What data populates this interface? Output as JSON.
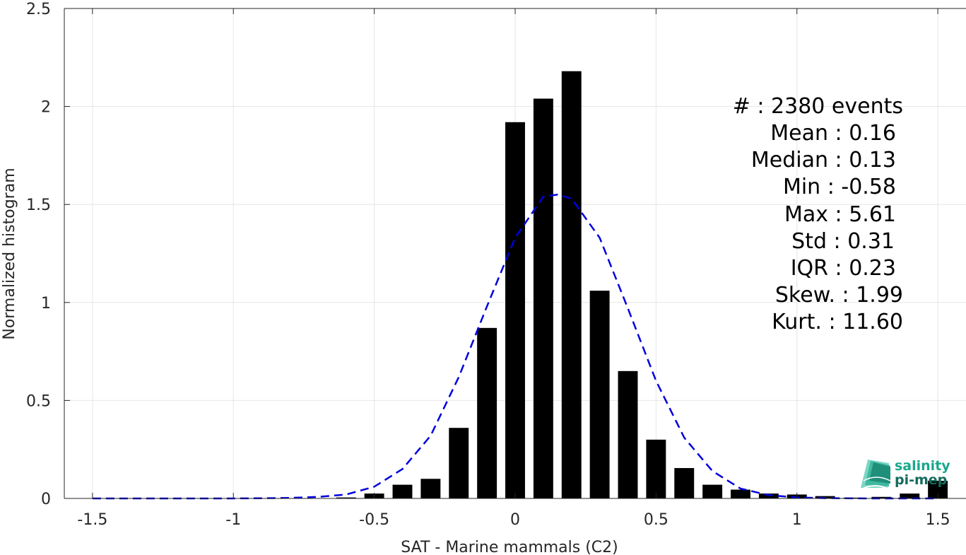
{
  "chart_data": {
    "type": "bar",
    "xlabel": "SAT - Marine mammals (C2)",
    "ylabel": "Normalized histogram",
    "xlim": [
      -1.6,
      1.6
    ],
    "ylim": [
      0,
      2.5
    ],
    "grid": true,
    "xticks": [
      -1.5,
      -1,
      -0.5,
      0,
      0.5,
      1,
      1.5
    ],
    "xtick_labels": [
      "-1.5",
      "-1",
      "-0.5",
      "0",
      "0.5",
      "1",
      "1.5"
    ],
    "yticks": [
      0,
      0.5,
      1,
      1.5,
      2,
      2.5
    ],
    "ytick_labels": [
      "0",
      "0.5",
      "1",
      "1.5",
      "2",
      "2.5"
    ],
    "bar_width": 0.07,
    "bars": {
      "x": [
        -0.6,
        -0.5,
        -0.4,
        -0.3,
        -0.2,
        -0.1,
        0.0,
        0.1,
        0.2,
        0.3,
        0.4,
        0.5,
        0.6,
        0.7,
        0.8,
        0.9,
        1.0,
        1.1,
        1.2,
        1.3,
        1.4,
        1.5
      ],
      "values": [
        0.005,
        0.025,
        0.07,
        0.1,
        0.36,
        0.87,
        1.92,
        2.04,
        2.18,
        1.06,
        0.65,
        0.3,
        0.155,
        0.07,
        0.045,
        0.025,
        0.02,
        0.012,
        0.004,
        0.008,
        0.025,
        0.09
      ],
      "color": "#000000"
    },
    "fit_curve": {
      "style": "dashed",
      "color": "#0000dd",
      "x": [
        -1.5,
        -1.4,
        -1.3,
        -1.2,
        -1.1,
        -1.0,
        -0.9,
        -0.8,
        -0.7,
        -0.6,
        -0.5,
        -0.4,
        -0.3,
        -0.2,
        -0.1,
        0.0,
        0.1,
        0.15,
        0.2,
        0.3,
        0.4,
        0.5,
        0.6,
        0.7,
        0.8,
        0.9,
        1.0,
        1.1,
        1.2,
        1.3,
        1.4,
        1.5
      ],
      "y": [
        0,
        0,
        0,
        0,
        0,
        0,
        0.001,
        0.003,
        0.008,
        0.02,
        0.06,
        0.15,
        0.32,
        0.62,
        0.98,
        1.33,
        1.54,
        1.55,
        1.53,
        1.33,
        0.97,
        0.6,
        0.31,
        0.14,
        0.05,
        0.017,
        0.005,
        0.0015,
        0.0004,
        0,
        0,
        0
      ]
    },
    "annotations": [
      "#  : 2380 events",
      "Mean : 0.16",
      "Median : 0.13",
      "Min : -0.58",
      "Max : 5.61",
      "Std : 0.31",
      "IQR : 0.23",
      "Skew. : 1.99",
      "Kurt. : 11.60"
    ]
  },
  "logo": {
    "line1": "salinity",
    "line2": "pi-mep",
    "color_primary": "#1aa88c",
    "color_secondary": "#146b5c"
  }
}
